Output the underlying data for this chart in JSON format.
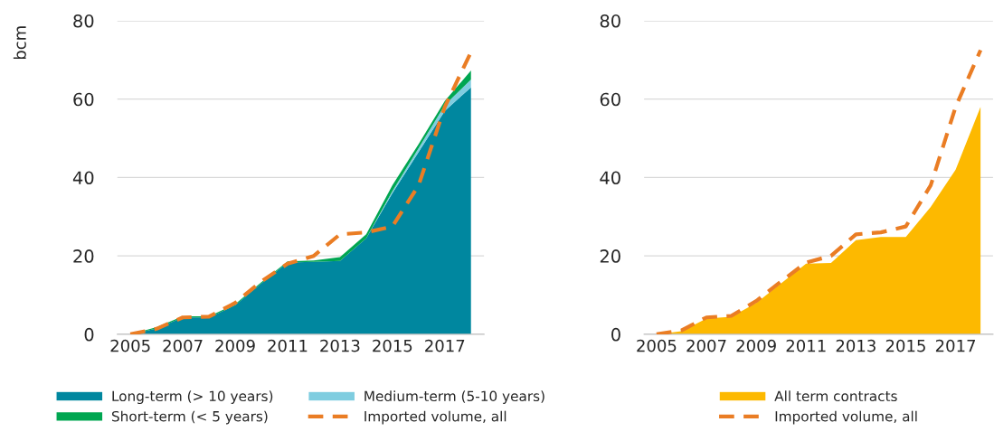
{
  "chart_data": [
    {
      "type": "area",
      "stacked": true,
      "ylabel": "bcm",
      "categories": [
        "2005",
        null,
        "2007",
        null,
        "2009",
        null,
        "2011",
        null,
        "2013",
        null,
        "2015",
        null,
        "2017",
        null
      ],
      "ylim": [
        0,
        80
      ],
      "yticks": [
        0,
        20,
        40,
        60,
        80
      ],
      "grid": "y",
      "legend": "bottom",
      "line_style": "dashed",
      "series": [
        {
          "name": "Long-term (> 10 years)",
          "color": "#00879f",
          "values": [
            0,
            1.5,
            4.3,
            4.3,
            7.4,
            13,
            18.3,
            18.5,
            18.7,
            24.5,
            36,
            46.5,
            57,
            63
          ]
        },
        {
          "name": "Medium-term (5-10 years)",
          "color": "#7fcde0",
          "values": [
            0,
            0,
            0,
            0,
            0,
            0,
            0,
            0,
            0,
            0,
            0.5,
            1,
            1.5,
            2
          ]
        },
        {
          "name": "Short-term (< 5 years)",
          "color": "#00a651",
          "values": [
            0,
            0.3,
            0.3,
            0.3,
            0.3,
            0.3,
            0.3,
            0.3,
            1,
            1,
            1.5,
            1,
            1,
            2.3
          ]
        },
        {
          "name": "Imported volume, all",
          "type": "line",
          "color": "#ea7d24",
          "values": [
            0,
            1.4,
            4.3,
            4.5,
            8,
            13.5,
            18,
            20,
            25.5,
            26,
            27.5,
            38,
            58,
            72
          ]
        }
      ]
    },
    {
      "type": "area",
      "categories": [
        "2005",
        null,
        "2007",
        null,
        "2009",
        null,
        "2011",
        null,
        "2013",
        null,
        "2015",
        null,
        "2017",
        null
      ],
      "ylim": [
        0,
        80
      ],
      "yticks": [
        0,
        20,
        40,
        60,
        80
      ],
      "grid": "y",
      "legend": "bottom",
      "line_style": "dashed",
      "series": [
        {
          "name": "All term contracts",
          "color": "#fdb900",
          "values": [
            0,
            0.8,
            4,
            4.5,
            8,
            13,
            18,
            18.2,
            24,
            24.8,
            24.8,
            32.5,
            42,
            58
          ]
        },
        {
          "name": "Imported volume, all",
          "type": "line",
          "color": "#ea7d24",
          "values": [
            0,
            1,
            4.3,
            4.7,
            8.5,
            13.5,
            18.3,
            20,
            25.5,
            26,
            27.5,
            38,
            58,
            72.5
          ]
        }
      ]
    }
  ]
}
